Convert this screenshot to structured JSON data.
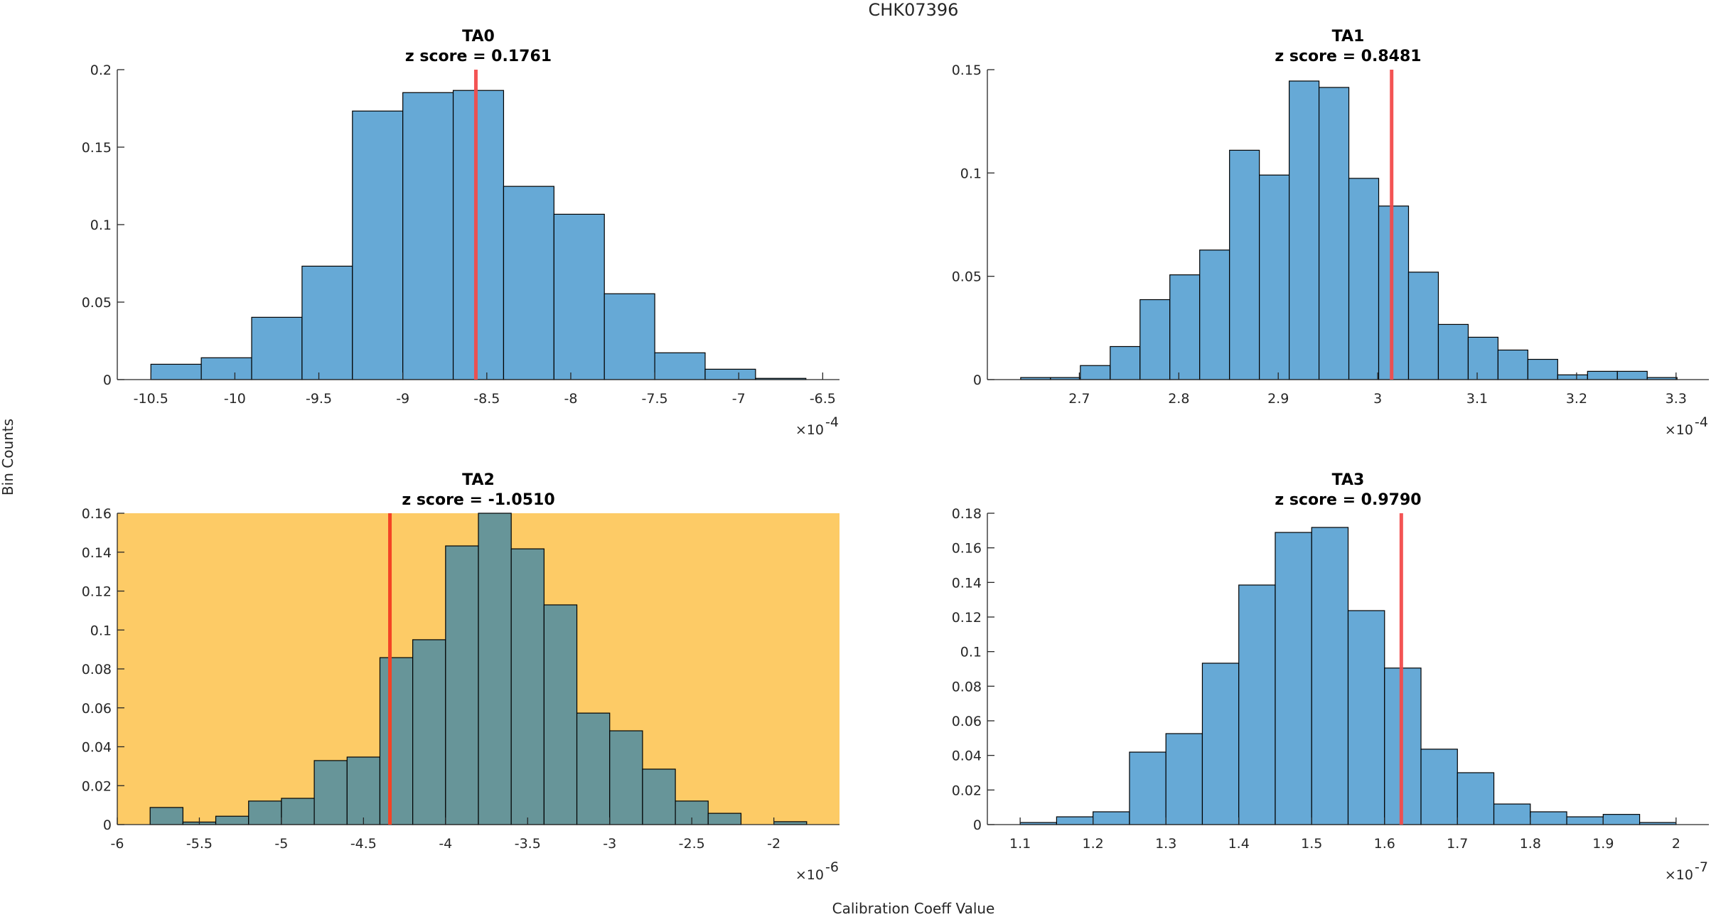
{
  "figure": {
    "suptitle": "CHK07396",
    "ylabel": "Bin Counts",
    "xlabel": "Calibration Coeff Value"
  },
  "colors": {
    "bar_default": "#66A9D6",
    "bar_flagged": "#679599",
    "axes_bg_flagged": "#FDCB66",
    "marker_default": "#F24B4B",
    "marker_flagged": "#F44325",
    "edge": "#000000",
    "axis": "#262626"
  },
  "chart_data": [
    {
      "type": "bar",
      "id": "TA0",
      "title": "TA0",
      "subtitle": "z score = 0.1761",
      "flagged": false,
      "exponent_label": "×10",
      "exponent": "-4",
      "xlim": [
        -10.7,
        -6.4
      ],
      "ylim": [
        0,
        0.2
      ],
      "xticks": [
        -10.5,
        -10,
        -9.5,
        -9,
        -8.5,
        -8,
        -7.5,
        -7,
        -6.5
      ],
      "xtick_labels": [
        "-10.5",
        "-10",
        "-9.5",
        "-9",
        "-8.5",
        "-8",
        "-7.5",
        "-7",
        "-6.5"
      ],
      "yticks": [
        0,
        0.05,
        0.1,
        0.15,
        0.2
      ],
      "ytick_labels": [
        "0",
        "0.05",
        "0.1",
        "0.15",
        "0.2"
      ],
      "bin_start": -10.5,
      "bin_width": 0.3,
      "values": [
        0.0099,
        0.0141,
        0.0402,
        0.0732,
        0.1733,
        0.1852,
        0.1866,
        0.1247,
        0.1067,
        0.0554,
        0.0173,
        0.0067,
        0.0008
      ],
      "marker_x": -8.565
    },
    {
      "type": "bar",
      "id": "TA1",
      "title": "TA1",
      "subtitle": "z score = 0.8481",
      "flagged": false,
      "exponent_label": "×10",
      "exponent": "-4",
      "xlim": [
        2.6075,
        3.333
      ],
      "ylim": [
        0,
        0.15
      ],
      "xticks": [
        2.7,
        2.8,
        2.9,
        3.0,
        3.1,
        3.2,
        3.3
      ],
      "xtick_labels": [
        "2.7",
        "2.8",
        "2.9",
        "3",
        "3.1",
        "3.2",
        "3.3"
      ],
      "yticks": [
        0,
        0.05,
        0.1,
        0.15
      ],
      "ytick_labels": [
        "0",
        "0.05",
        "0.1",
        "0.15"
      ],
      "bin_start": 2.641,
      "bin_width": 0.03,
      "values": [
        0.001,
        0.001,
        0.0068,
        0.016,
        0.0387,
        0.0507,
        0.0627,
        0.111,
        0.099,
        0.1445,
        0.1414,
        0.0974,
        0.084,
        0.052,
        0.0267,
        0.0205,
        0.0143,
        0.0098,
        0.0023,
        0.004,
        0.004,
        0.001
      ],
      "marker_x": 3.014
    },
    {
      "type": "bar",
      "id": "TA2",
      "title": "TA2",
      "subtitle": "z score = -1.0510",
      "flagged": true,
      "exponent_label": "×10",
      "exponent": "-6",
      "xlim": [
        -6,
        -1.6
      ],
      "ylim": [
        0,
        0.16
      ],
      "xticks": [
        -6,
        -5.5,
        -5,
        -4.5,
        -4,
        -3.5,
        -3,
        -2.5,
        -2
      ],
      "xtick_labels": [
        "-6",
        "-5.5",
        "-5",
        "-4.5",
        "-4",
        "-3.5",
        "-3",
        "-2.5",
        "-2"
      ],
      "yticks": [
        0,
        0.02,
        0.04,
        0.06,
        0.08,
        0.1,
        0.12,
        0.14,
        0.16
      ],
      "ytick_labels": [
        "0",
        "0.02",
        "0.04",
        "0.06",
        "0.08",
        "0.1",
        "0.12",
        "0.14",
        "0.16"
      ],
      "bin_start": -5.8,
      "bin_width": 0.2,
      "values": [
        0.0088,
        0.0013,
        0.0043,
        0.0121,
        0.0135,
        0.0329,
        0.0347,
        0.0858,
        0.095,
        0.1432,
        0.16,
        0.1417,
        0.1129,
        0.0573,
        0.0482,
        0.0285,
        0.0121,
        0.0058,
        0.0,
        0.0015
      ],
      "marker_x": -4.339
    },
    {
      "type": "bar",
      "id": "TA3",
      "title": "TA3",
      "subtitle": "z score = 0.9790",
      "flagged": false,
      "exponent_label": "×10",
      "exponent": "-7",
      "xlim": [
        1.055,
        2.045
      ],
      "ylim": [
        0,
        0.18
      ],
      "xticks": [
        1.1,
        1.2,
        1.3,
        1.4,
        1.5,
        1.6,
        1.7,
        1.8,
        1.9,
        2.0
      ],
      "xtick_labels": [
        "1.1",
        "1.2",
        "1.3",
        "1.4",
        "1.5",
        "1.6",
        "1.7",
        "1.8",
        "1.9",
        "2"
      ],
      "yticks": [
        0,
        0.02,
        0.04,
        0.06,
        0.08,
        0.1,
        0.12,
        0.14,
        0.16,
        0.18
      ],
      "ytick_labels": [
        "0",
        "0.02",
        "0.04",
        "0.06",
        "0.08",
        "0.1",
        "0.12",
        "0.14",
        "0.16",
        "0.18"
      ],
      "bin_start": 1.1,
      "bin_width": 0.05,
      "values": [
        0.0012,
        0.0045,
        0.0074,
        0.0419,
        0.0526,
        0.0933,
        0.1385,
        0.1689,
        0.1718,
        0.1237,
        0.0905,
        0.0436,
        0.03,
        0.0119,
        0.0074,
        0.0045,
        0.0059,
        0.0012
      ],
      "marker_x": 1.623
    }
  ]
}
